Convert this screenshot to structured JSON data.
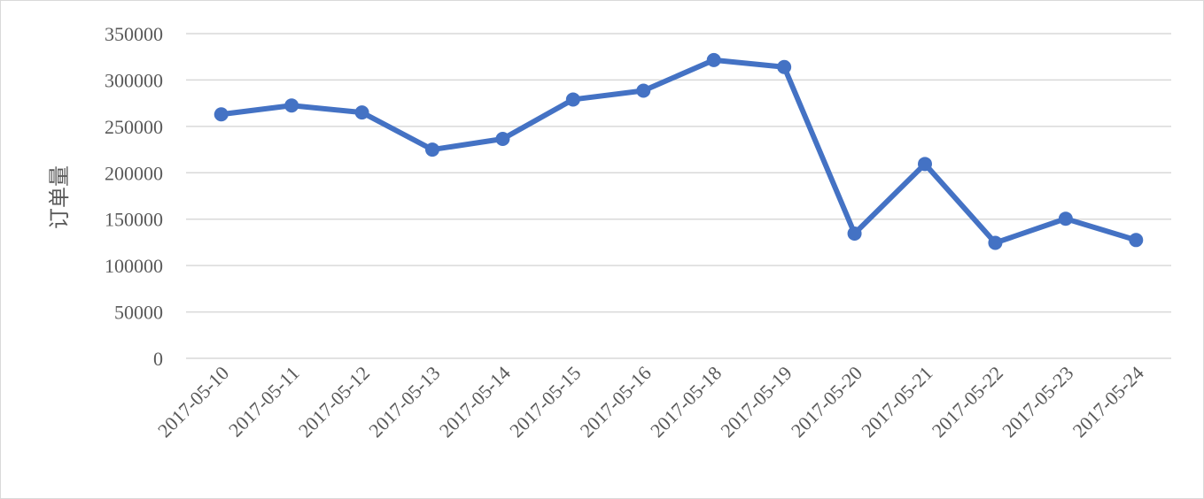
{
  "chart_data": {
    "type": "line",
    "title": "",
    "xlabel": "",
    "ylabel": "订单量",
    "ylim": [
      0,
      350000
    ],
    "yticks": [
      0,
      50000,
      100000,
      150000,
      200000,
      250000,
      300000,
      350000
    ],
    "grid": true,
    "legend": "none",
    "categories": [
      "2017-05-10",
      "2017-05-11",
      "2017-05-12",
      "2017-05-13",
      "2017-05-14",
      "2017-05-15",
      "2017-05-16",
      "2017-05-18",
      "2017-05-19",
      "2017-05-20",
      "2017-05-21",
      "2017-05-22",
      "2017-05-23",
      "2017-05-24"
    ],
    "series": [
      {
        "values": [
          263000,
          272500,
          265000,
          225000,
          236500,
          279000,
          288500,
          321500,
          314000,
          134500,
          209500,
          124500,
          150500,
          127500
        ],
        "color": "#4472c4"
      }
    ]
  }
}
